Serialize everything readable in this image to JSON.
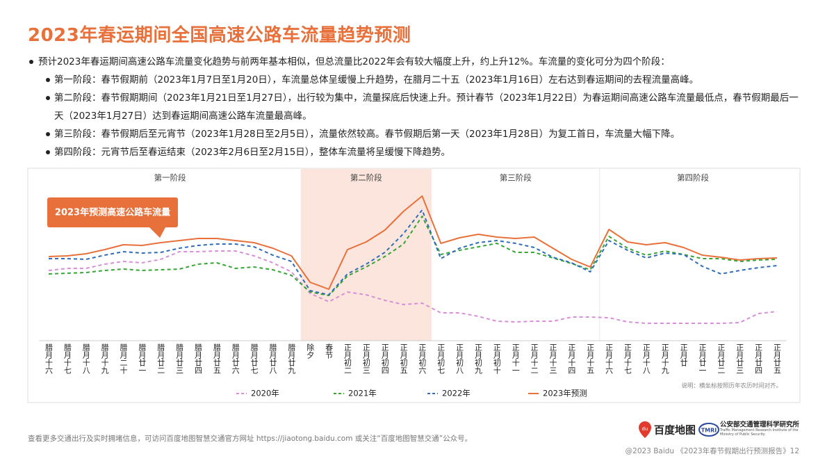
{
  "header": {
    "title": "2023年春运期间全国高速公路车流量趋势预测"
  },
  "bullets": [
    {
      "text": "预计2023年春运期间高速公路车流量变化趋势与前两年基本相似，但总流量比2022年会有较大幅度上升，约上升12%。车流量的变化可分为四个阶段：",
      "sub": [
        "第一阶段：春节假期前（2023年1月7日至1月20日），车流量总体呈缓慢上升趋势，在腊月二十五（2023年1月16日）左右达到春运期间的去程流量高峰。",
        "第二阶段：春节假期期间（2023年1月21日至1月27日），出行较为集中，流量探底后快速上升。预计春节（2023年1月22日）为春运期间高速公路车流量最低点，春节假期最后一天（2023年1月27日）达到春运期间高速公路车流量最高峰。",
        "第三阶段：春节假期后至元宵节（2023年1月28日至2月5日），流量依然较高。春节假期后第一天（2023年1月28日）为复工首日，车流量大幅下降。",
        "第四阶段：元宵节后至春运结束（2023年2月6日至2月15日），整体车流量将呈缓慢下降趋势。"
      ]
    }
  ],
  "chart_data": {
    "type": "line",
    "categories": [
      "腊月十六",
      "腊月十七",
      "腊月十八",
      "腊月十九",
      "腊月二十",
      "腊月廿一",
      "腊月廿二",
      "腊月廿三",
      "腊月廿四",
      "腊月廿五",
      "腊月廿六",
      "腊月廿七",
      "腊月廿八",
      "腊月廿九",
      "除夕",
      "春节",
      "正月初二",
      "正月初三",
      "正月初四",
      "正月初五",
      "正月初六",
      "正月初七",
      "正月初八",
      "正月初九",
      "正月初十",
      "正月十一",
      "正月十二",
      "正月十三",
      "正月十四",
      "正月十五",
      "正月十六",
      "正月十七",
      "正月十八",
      "正月十九",
      "正月廿",
      "正月廿一",
      "正月廿二",
      "正月廿三",
      "正月廿四",
      "正月廿五"
    ],
    "ylim": [
      0,
      210
    ],
    "phases": [
      {
        "label": "第一阶段",
        "from": "腊月十六",
        "to": "腊月廿九",
        "highlight": false
      },
      {
        "label": "第二阶段",
        "from": "除夕",
        "to": "正月初六",
        "highlight": true
      },
      {
        "label": "第三阶段",
        "from": "正月初七",
        "to": "正月十五",
        "highlight": false
      },
      {
        "label": "第四阶段",
        "from": "正月十六",
        "to": "正月廿五",
        "highlight": false
      }
    ],
    "annotation": "2023年预测高速公路车流量",
    "note": "说明：横坐标按照历年农历时间对齐。",
    "series": [
      {
        "name": "2020年",
        "color": "#d98ed8",
        "dash": true,
        "values": [
          91,
          94,
          94,
          100,
          104,
          102,
          107,
          118,
          118,
          119,
          119,
          112,
          102,
          89,
          58,
          46,
          60,
          56,
          48,
          42,
          44,
          30,
          30,
          25,
          18,
          17,
          18,
          18,
          24,
          24,
          23,
          17,
          15,
          15,
          15,
          15,
          15,
          16,
          29,
          32
        ]
      },
      {
        "name": "2021年",
        "color": "#35a535",
        "dash": true,
        "values": [
          86,
          87,
          88,
          91,
          93,
          91,
          92,
          93,
          100,
          102,
          94,
          96,
          92,
          84,
          60,
          55,
          83,
          96,
          111,
          129,
          169,
          114,
          120,
          125,
          130,
          117,
          117,
          109,
          101,
          92,
          140,
          123,
          113,
          119,
          114,
          108,
          108,
          104,
          106,
          107
        ]
      },
      {
        "name": "2022年",
        "color": "#2f6db8",
        "dash": true,
        "values": [
          108,
          108,
          107,
          113,
          118,
          116,
          117,
          123,
          127,
          129,
          129,
          125,
          113,
          104,
          62,
          56,
          86,
          100,
          117,
          144,
          178,
          108,
          123,
          131,
          134,
          130,
          124,
          110,
          102,
          89,
          134,
          120,
          109,
          116,
          114,
          97,
          86,
          91,
          95,
          98
        ]
      },
      {
        "name": "2023年预测",
        "color": "#e8703a",
        "dash": false,
        "values": [
          111,
          112,
          115,
          121,
          128,
          127,
          131,
          134,
          137,
          137,
          134,
          131,
          123,
          112,
          74,
          64,
          121,
          132,
          149,
          176,
          198,
          130,
          138,
          143,
          139,
          137,
          139,
          123,
          107,
          96,
          150,
          132,
          128,
          131,
          124,
          113,
          110,
          106,
          108,
          109
        ]
      }
    ]
  },
  "footer": {
    "info": "查看更多交通出行及实时拥堵信息，可访问百度地图智慧交通官方网址 https://jiaotong.baidu.com 或关注“百度地图智慧交通”公众号。",
    "logo_baidu": "百度地图",
    "logo_tmri": "公安部交通管理科学研究所",
    "logo_tmri_en": "Traffic Management Research Institute of the Ministry of Public Security",
    "copyright": "@2023 Baidu 《2023年春节假期出行预测报告》12"
  }
}
